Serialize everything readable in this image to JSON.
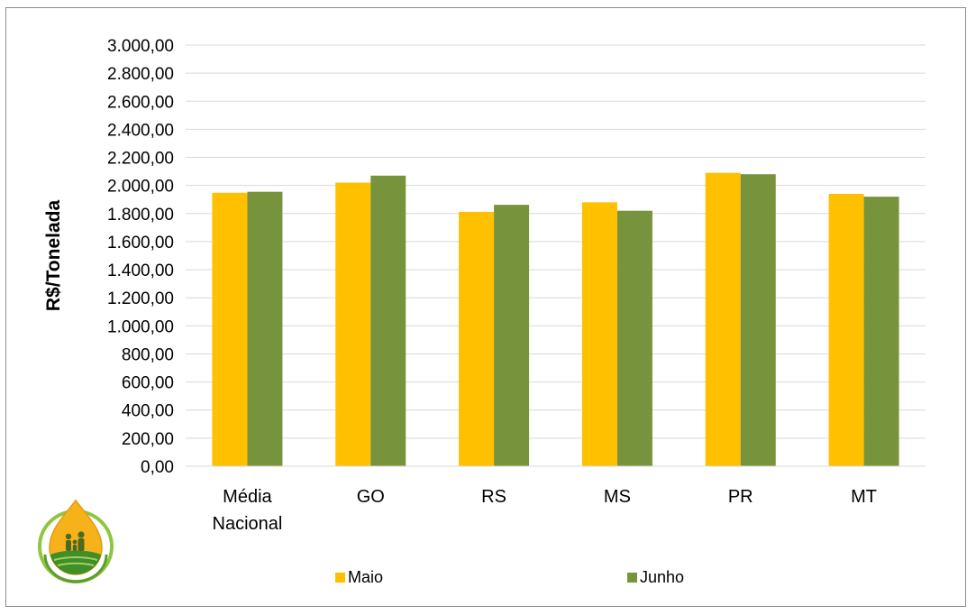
{
  "chart_data": {
    "type": "bar",
    "title": "",
    "xlabel": "",
    "ylabel": "R$/Tonelada",
    "ylim": [
      0,
      3000
    ],
    "ytick_step": 200,
    "yticks": [
      "0,00",
      "200,00",
      "400,00",
      "600,00",
      "800,00",
      "1.000,00",
      "1.200,00",
      "1.400,00",
      "1.600,00",
      "1.800,00",
      "2.000,00",
      "2.200,00",
      "2.400,00",
      "2.600,00",
      "2.800,00",
      "3.000,00"
    ],
    "categories": [
      [
        "Média",
        "Nacional"
      ],
      [
        "GO"
      ],
      [
        "RS"
      ],
      [
        "MS"
      ],
      [
        "PR"
      ],
      [
        "MT"
      ]
    ],
    "series": [
      {
        "name": "Maio",
        "color": "#FFC000",
        "values": [
          1948,
          2020,
          1812,
          1880,
          2090,
          1940
        ]
      },
      {
        "name": "Junho",
        "color": "#77933C",
        "values": [
          1955,
          2070,
          1862,
          1820,
          2080,
          1920
        ]
      }
    ],
    "grid": true,
    "legend_position": "bottom"
  },
  "logo": {
    "name": "droplet-family-logo"
  }
}
